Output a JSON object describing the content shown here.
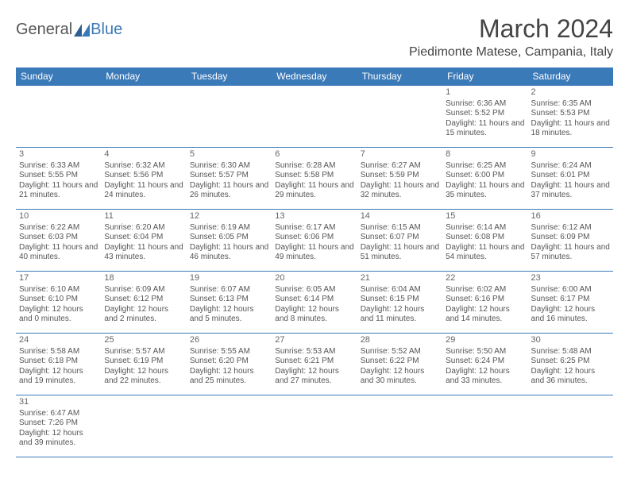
{
  "logo": {
    "part1": "General",
    "part2": "Blue"
  },
  "header": {
    "month_title": "March 2024",
    "location": "Piedimonte Matese, Campania, Italy"
  },
  "colors": {
    "header_bg": "#3b7ab8",
    "header_text": "#ffffff",
    "border": "#3b7ab8",
    "text": "#555555",
    "logo_accent": "#3b7ab8"
  },
  "weekdays": [
    "Sunday",
    "Monday",
    "Tuesday",
    "Wednesday",
    "Thursday",
    "Friday",
    "Saturday"
  ],
  "weeks": [
    [
      null,
      null,
      null,
      null,
      null,
      {
        "d": "1",
        "sr": "Sunrise: 6:36 AM",
        "ss": "Sunset: 5:52 PM",
        "dl": "Daylight: 11 hours and 15 minutes."
      },
      {
        "d": "2",
        "sr": "Sunrise: 6:35 AM",
        "ss": "Sunset: 5:53 PM",
        "dl": "Daylight: 11 hours and 18 minutes."
      }
    ],
    [
      {
        "d": "3",
        "sr": "Sunrise: 6:33 AM",
        "ss": "Sunset: 5:55 PM",
        "dl": "Daylight: 11 hours and 21 minutes."
      },
      {
        "d": "4",
        "sr": "Sunrise: 6:32 AM",
        "ss": "Sunset: 5:56 PM",
        "dl": "Daylight: 11 hours and 24 minutes."
      },
      {
        "d": "5",
        "sr": "Sunrise: 6:30 AM",
        "ss": "Sunset: 5:57 PM",
        "dl": "Daylight: 11 hours and 26 minutes."
      },
      {
        "d": "6",
        "sr": "Sunrise: 6:28 AM",
        "ss": "Sunset: 5:58 PM",
        "dl": "Daylight: 11 hours and 29 minutes."
      },
      {
        "d": "7",
        "sr": "Sunrise: 6:27 AM",
        "ss": "Sunset: 5:59 PM",
        "dl": "Daylight: 11 hours and 32 minutes."
      },
      {
        "d": "8",
        "sr": "Sunrise: 6:25 AM",
        "ss": "Sunset: 6:00 PM",
        "dl": "Daylight: 11 hours and 35 minutes."
      },
      {
        "d": "9",
        "sr": "Sunrise: 6:24 AM",
        "ss": "Sunset: 6:01 PM",
        "dl": "Daylight: 11 hours and 37 minutes."
      }
    ],
    [
      {
        "d": "10",
        "sr": "Sunrise: 6:22 AM",
        "ss": "Sunset: 6:03 PM",
        "dl": "Daylight: 11 hours and 40 minutes."
      },
      {
        "d": "11",
        "sr": "Sunrise: 6:20 AM",
        "ss": "Sunset: 6:04 PM",
        "dl": "Daylight: 11 hours and 43 minutes."
      },
      {
        "d": "12",
        "sr": "Sunrise: 6:19 AM",
        "ss": "Sunset: 6:05 PM",
        "dl": "Daylight: 11 hours and 46 minutes."
      },
      {
        "d": "13",
        "sr": "Sunrise: 6:17 AM",
        "ss": "Sunset: 6:06 PM",
        "dl": "Daylight: 11 hours and 49 minutes."
      },
      {
        "d": "14",
        "sr": "Sunrise: 6:15 AM",
        "ss": "Sunset: 6:07 PM",
        "dl": "Daylight: 11 hours and 51 minutes."
      },
      {
        "d": "15",
        "sr": "Sunrise: 6:14 AM",
        "ss": "Sunset: 6:08 PM",
        "dl": "Daylight: 11 hours and 54 minutes."
      },
      {
        "d": "16",
        "sr": "Sunrise: 6:12 AM",
        "ss": "Sunset: 6:09 PM",
        "dl": "Daylight: 11 hours and 57 minutes."
      }
    ],
    [
      {
        "d": "17",
        "sr": "Sunrise: 6:10 AM",
        "ss": "Sunset: 6:10 PM",
        "dl": "Daylight: 12 hours and 0 minutes."
      },
      {
        "d": "18",
        "sr": "Sunrise: 6:09 AM",
        "ss": "Sunset: 6:12 PM",
        "dl": "Daylight: 12 hours and 2 minutes."
      },
      {
        "d": "19",
        "sr": "Sunrise: 6:07 AM",
        "ss": "Sunset: 6:13 PM",
        "dl": "Daylight: 12 hours and 5 minutes."
      },
      {
        "d": "20",
        "sr": "Sunrise: 6:05 AM",
        "ss": "Sunset: 6:14 PM",
        "dl": "Daylight: 12 hours and 8 minutes."
      },
      {
        "d": "21",
        "sr": "Sunrise: 6:04 AM",
        "ss": "Sunset: 6:15 PM",
        "dl": "Daylight: 12 hours and 11 minutes."
      },
      {
        "d": "22",
        "sr": "Sunrise: 6:02 AM",
        "ss": "Sunset: 6:16 PM",
        "dl": "Daylight: 12 hours and 14 minutes."
      },
      {
        "d": "23",
        "sr": "Sunrise: 6:00 AM",
        "ss": "Sunset: 6:17 PM",
        "dl": "Daylight: 12 hours and 16 minutes."
      }
    ],
    [
      {
        "d": "24",
        "sr": "Sunrise: 5:58 AM",
        "ss": "Sunset: 6:18 PM",
        "dl": "Daylight: 12 hours and 19 minutes."
      },
      {
        "d": "25",
        "sr": "Sunrise: 5:57 AM",
        "ss": "Sunset: 6:19 PM",
        "dl": "Daylight: 12 hours and 22 minutes."
      },
      {
        "d": "26",
        "sr": "Sunrise: 5:55 AM",
        "ss": "Sunset: 6:20 PM",
        "dl": "Daylight: 12 hours and 25 minutes."
      },
      {
        "d": "27",
        "sr": "Sunrise: 5:53 AM",
        "ss": "Sunset: 6:21 PM",
        "dl": "Daylight: 12 hours and 27 minutes."
      },
      {
        "d": "28",
        "sr": "Sunrise: 5:52 AM",
        "ss": "Sunset: 6:22 PM",
        "dl": "Daylight: 12 hours and 30 minutes."
      },
      {
        "d": "29",
        "sr": "Sunrise: 5:50 AM",
        "ss": "Sunset: 6:24 PM",
        "dl": "Daylight: 12 hours and 33 minutes."
      },
      {
        "d": "30",
        "sr": "Sunrise: 5:48 AM",
        "ss": "Sunset: 6:25 PM",
        "dl": "Daylight: 12 hours and 36 minutes."
      }
    ],
    [
      {
        "d": "31",
        "sr": "Sunrise: 6:47 AM",
        "ss": "Sunset: 7:26 PM",
        "dl": "Daylight: 12 hours and 39 minutes."
      },
      null,
      null,
      null,
      null,
      null,
      null
    ]
  ]
}
